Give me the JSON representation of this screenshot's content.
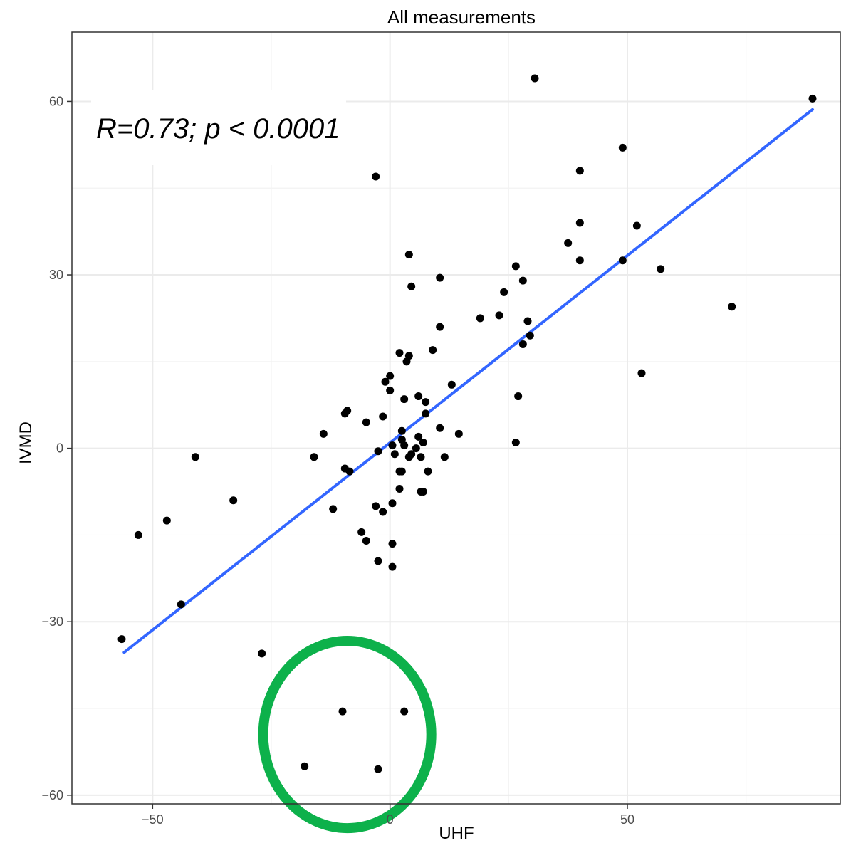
{
  "chart_data": {
    "type": "scatter",
    "title": "All measurements",
    "xlabel": "UHF",
    "ylabel": "IVMD",
    "xlim": [
      -67,
      95
    ],
    "ylim": [
      -61.5,
      72
    ],
    "xticks": [
      -50,
      0,
      50
    ],
    "yticks": [
      -60,
      -30,
      0,
      30,
      60
    ],
    "xtick_labels": [
      "−50",
      "0",
      "50"
    ],
    "ytick_labels": [
      "−60",
      "−30",
      "0",
      "30",
      "60"
    ],
    "grid": true,
    "annotation": "R=0.73; p < 0.0001",
    "point_color": "#000000",
    "regression_line": {
      "color": "#3366ff",
      "x": [
        -56,
        89
      ],
      "y": [
        -35.3,
        58.6
      ]
    },
    "highlight_circle": {
      "color": "#0db14b",
      "cx": -9,
      "cy": -49.5,
      "rx": 17.7,
      "ry": 16.2
    },
    "points": [
      {
        "x": 89,
        "y": 60.5
      },
      {
        "x": 30.5,
        "y": 64
      },
      {
        "x": 49,
        "y": 52
      },
      {
        "x": 40,
        "y": 48
      },
      {
        "x": 40,
        "y": 39
      },
      {
        "x": 52,
        "y": 38.5
      },
      {
        "x": 37.5,
        "y": 35.5
      },
      {
        "x": 40,
        "y": 32.5
      },
      {
        "x": 49,
        "y": 32.5
      },
      {
        "x": 57,
        "y": 31
      },
      {
        "x": 72,
        "y": 24.5
      },
      {
        "x": 53,
        "y": 13
      },
      {
        "x": -3,
        "y": 47
      },
      {
        "x": 4,
        "y": 33.5
      },
      {
        "x": 4.5,
        "y": 28
      },
      {
        "x": 10.5,
        "y": 29.5
      },
      {
        "x": 26.5,
        "y": 31.5
      },
      {
        "x": 24,
        "y": 27
      },
      {
        "x": 28,
        "y": 29
      },
      {
        "x": 23,
        "y": 23
      },
      {
        "x": 19,
        "y": 22.5
      },
      {
        "x": 29,
        "y": 22
      },
      {
        "x": 29.5,
        "y": 19.5
      },
      {
        "x": 28,
        "y": 18
      },
      {
        "x": 10.5,
        "y": 21
      },
      {
        "x": 9,
        "y": 17
      },
      {
        "x": 2,
        "y": 16.5
      },
      {
        "x": 4,
        "y": 16
      },
      {
        "x": 3.5,
        "y": 15
      },
      {
        "x": 13,
        "y": 11
      },
      {
        "x": 0,
        "y": 12.5
      },
      {
        "x": -1,
        "y": 11.5
      },
      {
        "x": 0,
        "y": 10
      },
      {
        "x": 6,
        "y": 9
      },
      {
        "x": 3,
        "y": 8.5
      },
      {
        "x": 7.5,
        "y": 8
      },
      {
        "x": 27,
        "y": 9
      },
      {
        "x": 7.5,
        "y": 6
      },
      {
        "x": -9,
        "y": 6.5
      },
      {
        "x": -9.5,
        "y": 6
      },
      {
        "x": -1.5,
        "y": 5.5
      },
      {
        "x": -5,
        "y": 4.5
      },
      {
        "x": 10.5,
        "y": 3.5
      },
      {
        "x": 14.5,
        "y": 2.5
      },
      {
        "x": -14,
        "y": 2.5
      },
      {
        "x": 2.5,
        "y": 3
      },
      {
        "x": 6,
        "y": 2
      },
      {
        "x": 2.5,
        "y": 1.5
      },
      {
        "x": 7,
        "y": 1
      },
      {
        "x": 26.5,
        "y": 1
      },
      {
        "x": 3,
        "y": 0.5
      },
      {
        "x": 0.5,
        "y": 0.5
      },
      {
        "x": 5.5,
        "y": 0
      },
      {
        "x": -2.5,
        "y": -0.5
      },
      {
        "x": 1,
        "y": -1
      },
      {
        "x": 4.5,
        "y": -1
      },
      {
        "x": 4,
        "y": -1.5
      },
      {
        "x": 6.5,
        "y": -1.5
      },
      {
        "x": 11.5,
        "y": -1.5
      },
      {
        "x": -16,
        "y": -1.5
      },
      {
        "x": -41,
        "y": -1.5
      },
      {
        "x": -9.5,
        "y": -3.5
      },
      {
        "x": -8.5,
        "y": -4
      },
      {
        "x": 2,
        "y": -4
      },
      {
        "x": 2.5,
        "y": -4
      },
      {
        "x": 8,
        "y": -4
      },
      {
        "x": 2,
        "y": -7
      },
      {
        "x": 6.5,
        "y": -7.5
      },
      {
        "x": 7,
        "y": -7.5
      },
      {
        "x": -33,
        "y": -9
      },
      {
        "x": 0.5,
        "y": -9.5
      },
      {
        "x": -3,
        "y": -10
      },
      {
        "x": -12,
        "y": -10.5
      },
      {
        "x": -1.5,
        "y": -11
      },
      {
        "x": -47,
        "y": -12.5
      },
      {
        "x": -6,
        "y": -14.5
      },
      {
        "x": -53,
        "y": -15
      },
      {
        "x": -5,
        "y": -16
      },
      {
        "x": 0.5,
        "y": -16.5
      },
      {
        "x": -2.5,
        "y": -19.5
      },
      {
        "x": 0.5,
        "y": -20.5
      },
      {
        "x": -44,
        "y": -27
      },
      {
        "x": -56.5,
        "y": -33
      },
      {
        "x": -27,
        "y": -35.5
      },
      {
        "x": -10,
        "y": -45.5
      },
      {
        "x": 3,
        "y": -45.5
      },
      {
        "x": -18,
        "y": -55
      },
      {
        "x": -2.5,
        "y": -55.5
      }
    ]
  }
}
